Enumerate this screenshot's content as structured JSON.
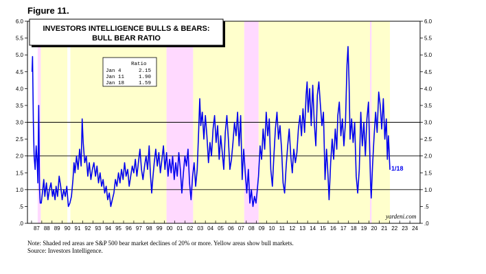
{
  "figure_label": "Figure 11.",
  "title_line1": "INVESTORS INTELLIGENCE BULLS & BEARS:",
  "title_line2": "BULL BEAR RATIO",
  "ratio_table": {
    "header": "Ratio",
    "rows": [
      {
        "date": "Jan  4",
        "value": "2.15"
      },
      {
        "date": "Jan 11",
        "value": "1.90"
      },
      {
        "date": "Jan 18",
        "value": "1.59"
      }
    ]
  },
  "end_label": "1/18",
  "credit": "yardeni.com",
  "note_line1": "Note: Shaded red areas are S&P 500 bear market declines of 20% or more. Yellow areas show bull markets.",
  "note_line2": "Source: Investors Intelligence.",
  "colors": {
    "series": "#0000ee",
    "bull": "#ffffcc",
    "bear": "#ffd9ff",
    "end_label": "#0000ee"
  },
  "chart_data": {
    "type": "line",
    "series": [
      {
        "points": [
          [
            1987.05,
            4.5
          ],
          [
            1987.1,
            4.95
          ],
          [
            1987.18,
            3.0
          ],
          [
            1987.25,
            2.0
          ],
          [
            1987.35,
            1.6
          ],
          [
            1987.45,
            2.3
          ],
          [
            1987.55,
            1.8
          ],
          [
            1987.62,
            1.2
          ],
          [
            1987.7,
            3.5
          ],
          [
            1987.78,
            1.0
          ],
          [
            1987.85,
            0.6
          ],
          [
            1987.95,
            0.6
          ],
          [
            1988.1,
            1.0
          ],
          [
            1988.2,
            1.3
          ],
          [
            1988.3,
            0.8
          ],
          [
            1988.45,
            1.2
          ],
          [
            1988.6,
            0.7
          ],
          [
            1988.75,
            1.0
          ],
          [
            1988.9,
            1.2
          ],
          [
            1989.05,
            0.8
          ],
          [
            1989.15,
            1.0
          ],
          [
            1989.3,
            0.7
          ],
          [
            1989.4,
            1.1
          ],
          [
            1989.55,
            0.8
          ],
          [
            1989.7,
            1.4
          ],
          [
            1989.85,
            1.1
          ],
          [
            1990.0,
            0.7
          ],
          [
            1990.15,
            1.0
          ],
          [
            1990.3,
            0.8
          ],
          [
            1990.45,
            1.1
          ],
          [
            1990.6,
            0.5
          ],
          [
            1990.75,
            0.6
          ],
          [
            1990.9,
            0.8
          ],
          [
            1991.05,
            1.3
          ],
          [
            1991.15,
            1.8
          ],
          [
            1991.25,
            1.5
          ],
          [
            1991.4,
            2.0
          ],
          [
            1991.55,
            1.6
          ],
          [
            1991.7,
            2.2
          ],
          [
            1991.85,
            1.7
          ],
          [
            1991.95,
            3.1
          ],
          [
            1992.05,
            2.4
          ],
          [
            1992.2,
            1.8
          ],
          [
            1992.35,
            2.0
          ],
          [
            1992.5,
            1.4
          ],
          [
            1992.65,
            1.8
          ],
          [
            1992.8,
            1.3
          ],
          [
            1992.95,
            1.6
          ],
          [
            1993.1,
            1.8
          ],
          [
            1993.25,
            1.4
          ],
          [
            1993.4,
            1.7
          ],
          [
            1993.55,
            1.2
          ],
          [
            1993.7,
            1.5
          ],
          [
            1993.85,
            1.1
          ],
          [
            1994.0,
            1.3
          ],
          [
            1994.15,
            0.9
          ],
          [
            1994.3,
            1.1
          ],
          [
            1994.45,
            0.7
          ],
          [
            1994.6,
            0.9
          ],
          [
            1994.75,
            0.5
          ],
          [
            1994.9,
            0.7
          ],
          [
            1995.05,
            0.9
          ],
          [
            1995.2,
            1.3
          ],
          [
            1995.35,
            1.1
          ],
          [
            1995.5,
            1.5
          ],
          [
            1995.65,
            1.2
          ],
          [
            1995.8,
            1.6
          ],
          [
            1995.95,
            1.3
          ],
          [
            1996.1,
            1.8
          ],
          [
            1996.25,
            1.4
          ],
          [
            1996.4,
            1.6
          ],
          [
            1996.55,
            1.1
          ],
          [
            1996.7,
            1.4
          ],
          [
            1996.85,
            1.7
          ],
          [
            1997.0,
            1.5
          ],
          [
            1997.15,
            1.9
          ],
          [
            1997.3,
            1.4
          ],
          [
            1997.45,
            1.8
          ],
          [
            1997.6,
            2.2
          ],
          [
            1997.75,
            1.6
          ],
          [
            1997.9,
            1.3
          ],
          [
            1998.05,
            1.7
          ],
          [
            1998.2,
            2.0
          ],
          [
            1998.35,
            1.6
          ],
          [
            1998.5,
            2.3
          ],
          [
            1998.62,
            1.5
          ],
          [
            1998.75,
            0.9
          ],
          [
            1998.88,
            1.4
          ],
          [
            1999.0,
            1.8
          ],
          [
            1999.15,
            2.2
          ],
          [
            1999.3,
            1.7
          ],
          [
            1999.45,
            2.1
          ],
          [
            1999.6,
            1.5
          ],
          [
            1999.75,
            1.9
          ],
          [
            1999.9,
            2.3
          ],
          [
            2000.05,
            1.6
          ],
          [
            2000.2,
            2.1
          ],
          [
            2000.35,
            1.4
          ],
          [
            2000.5,
            1.9
          ],
          [
            2000.65,
            1.5
          ],
          [
            2000.8,
            2.0
          ],
          [
            2000.95,
            1.3
          ],
          [
            2001.1,
            1.8
          ],
          [
            2001.25,
            1.4
          ],
          [
            2001.4,
            2.1
          ],
          [
            2001.55,
            1.6
          ],
          [
            2001.7,
            0.9
          ],
          [
            2001.85,
            1.5
          ],
          [
            2002.0,
            2.0
          ],
          [
            2002.15,
            1.7
          ],
          [
            2002.3,
            2.2
          ],
          [
            2002.45,
            1.2
          ],
          [
            2002.6,
            0.7
          ],
          [
            2002.75,
            1.4
          ],
          [
            2002.9,
            1.8
          ],
          [
            2003.05,
            1.1
          ],
          [
            2003.2,
            1.6
          ],
          [
            2003.35,
            2.8
          ],
          [
            2003.45,
            3.7
          ],
          [
            2003.55,
            2.9
          ],
          [
            2003.7,
            3.3
          ],
          [
            2003.85,
            2.5
          ],
          [
            2004.0,
            3.2
          ],
          [
            2004.15,
            2.6
          ],
          [
            2004.3,
            1.8
          ],
          [
            2004.45,
            2.4
          ],
          [
            2004.6,
            2.0
          ],
          [
            2004.75,
            2.8
          ],
          [
            2004.9,
            3.2
          ],
          [
            2005.05,
            2.4
          ],
          [
            2005.2,
            2.9
          ],
          [
            2005.35,
            1.9
          ],
          [
            2005.5,
            2.6
          ],
          [
            2005.65,
            2.1
          ],
          [
            2005.8,
            1.6
          ],
          [
            2005.95,
            2.7
          ],
          [
            2006.1,
            3.2
          ],
          [
            2006.25,
            2.5
          ],
          [
            2006.4,
            1.6
          ],
          [
            2006.55,
            1.9
          ],
          [
            2006.7,
            2.4
          ],
          [
            2006.85,
            3.0
          ],
          [
            2007.0,
            2.6
          ],
          [
            2007.15,
            3.3
          ],
          [
            2007.3,
            2.3
          ],
          [
            2007.45,
            3.2
          ],
          [
            2007.6,
            1.3
          ],
          [
            2007.75,
            2.2
          ],
          [
            2007.9,
            1.5
          ],
          [
            2008.05,
            0.9
          ],
          [
            2008.2,
            1.6
          ],
          [
            2008.35,
            0.6
          ],
          [
            2008.5,
            1.0
          ],
          [
            2008.65,
            0.5
          ],
          [
            2008.8,
            0.8
          ],
          [
            2008.95,
            0.6
          ],
          [
            2009.05,
            0.9
          ],
          [
            2009.2,
            1.4
          ],
          [
            2009.35,
            2.3
          ],
          [
            2009.5,
            1.9
          ],
          [
            2009.65,
            2.8
          ],
          [
            2009.8,
            2.2
          ],
          [
            2009.95,
            3.3
          ],
          [
            2010.1,
            2.6
          ],
          [
            2010.25,
            3.1
          ],
          [
            2010.4,
            1.6
          ],
          [
            2010.55,
            1.1
          ],
          [
            2010.7,
            2.0
          ],
          [
            2010.85,
            2.8
          ],
          [
            2011.0,
            3.3
          ],
          [
            2011.15,
            2.5
          ],
          [
            2011.3,
            2.9
          ],
          [
            2011.45,
            2.2
          ],
          [
            2011.6,
            1.2
          ],
          [
            2011.75,
            0.9
          ],
          [
            2011.9,
            1.7
          ],
          [
            2012.05,
            2.3
          ],
          [
            2012.2,
            2.8
          ],
          [
            2012.35,
            2.0
          ],
          [
            2012.5,
            1.5
          ],
          [
            2012.65,
            2.2
          ],
          [
            2012.8,
            1.8
          ],
          [
            2012.95,
            2.1
          ],
          [
            2013.1,
            2.8
          ],
          [
            2013.25,
            3.2
          ],
          [
            2013.4,
            2.6
          ],
          [
            2013.55,
            3.4
          ],
          [
            2013.7,
            2.7
          ],
          [
            2013.85,
            3.8
          ],
          [
            2013.95,
            4.2
          ],
          [
            2014.05,
            3.3
          ],
          [
            2014.2,
            4.0
          ],
          [
            2014.35,
            2.9
          ],
          [
            2014.5,
            4.1
          ],
          [
            2014.65,
            3.0
          ],
          [
            2014.8,
            2.3
          ],
          [
            2014.95,
            3.8
          ],
          [
            2015.1,
            4.2
          ],
          [
            2015.25,
            3.5
          ],
          [
            2015.4,
            2.9
          ],
          [
            2015.55,
            3.3
          ],
          [
            2015.7,
            1.3
          ],
          [
            2015.85,
            2.2
          ],
          [
            2016.0,
            1.4
          ],
          [
            2016.1,
            0.7
          ],
          [
            2016.25,
            1.8
          ],
          [
            2016.4,
            2.5
          ],
          [
            2016.55,
            1.9
          ],
          [
            2016.7,
            2.8
          ],
          [
            2016.85,
            2.2
          ],
          [
            2016.95,
            3.2
          ],
          [
            2017.1,
            3.6
          ],
          [
            2017.25,
            2.6
          ],
          [
            2017.4,
            3.1
          ],
          [
            2017.55,
            2.3
          ],
          [
            2017.7,
            3.0
          ],
          [
            2017.85,
            4.7
          ],
          [
            2017.95,
            5.25
          ],
          [
            2018.05,
            4.2
          ],
          [
            2018.15,
            2.5
          ],
          [
            2018.3,
            3.1
          ],
          [
            2018.45,
            2.4
          ],
          [
            2018.6,
            3.0
          ],
          [
            2018.75,
            1.4
          ],
          [
            2018.9,
            0.9
          ],
          [
            2019.05,
            1.6
          ],
          [
            2019.2,
            3.3
          ],
          [
            2019.35,
            2.3
          ],
          [
            2019.5,
            3.0
          ],
          [
            2019.65,
            2.0
          ],
          [
            2019.8,
            3.1
          ],
          [
            2019.95,
            3.6
          ],
          [
            2020.05,
            2.4
          ],
          [
            2020.15,
            1.2
          ],
          [
            2020.22,
            0.75
          ],
          [
            2020.35,
            1.7
          ],
          [
            2020.5,
            2.6
          ],
          [
            2020.65,
            3.3
          ],
          [
            2020.8,
            2.7
          ],
          [
            2020.95,
            3.9
          ],
          [
            2021.1,
            3.5
          ],
          [
            2021.25,
            2.8
          ],
          [
            2021.4,
            3.7
          ],
          [
            2021.55,
            2.5
          ],
          [
            2021.7,
            3.1
          ],
          [
            2021.8,
            1.9
          ],
          [
            2021.9,
            2.6
          ],
          [
            2021.97,
            2.15
          ],
          [
            2022.0,
            1.9
          ],
          [
            2022.05,
            1.59
          ]
        ]
      }
    ],
    "bull_periods": [
      [
        1987.9,
        1990.5
      ],
      [
        1990.8,
        2000.2
      ],
      [
        2002.8,
        2007.8
      ],
      [
        2009.2,
        2020.1
      ],
      [
        2020.25,
        2022.05
      ]
    ],
    "bear_periods": [
      [
        1987.6,
        1987.9
      ],
      [
        2000.2,
        2002.8
      ],
      [
        2007.8,
        2009.2
      ],
      [
        2020.1,
        2020.25
      ]
    ],
    "xlim": [
      1986.6,
      2025.0
    ],
    "ylim": [
      0,
      6
    ],
    "y_ticks": [
      {
        "value": 0,
        "label": ".0"
      },
      {
        "value": 0.5,
        "label": ".5"
      },
      {
        "value": 1,
        "label": "1.0"
      },
      {
        "value": 1.5,
        "label": "1.5"
      },
      {
        "value": 2,
        "label": "2.0"
      },
      {
        "value": 2.5,
        "label": "2.5"
      },
      {
        "value": 3,
        "label": "3.0"
      },
      {
        "value": 3.5,
        "label": "3.5"
      },
      {
        "value": 4,
        "label": "4.0"
      },
      {
        "value": 4.5,
        "label": "4.5"
      },
      {
        "value": 5,
        "label": "5.0"
      },
      {
        "value": 5.5,
        "label": "5.5"
      },
      {
        "value": 6,
        "label": "6.0"
      }
    ],
    "x_tick_labels": [
      "87",
      "88",
      "89",
      "90",
      "91",
      "92",
      "93",
      "94",
      "95",
      "96",
      "97",
      "98",
      "99",
      "00",
      "01",
      "02",
      "03",
      "04",
      "05",
      "06",
      "07",
      "08",
      "09",
      "10",
      "11",
      "12",
      "13",
      "14",
      "15",
      "16",
      "17",
      "18",
      "19",
      "20",
      "21",
      "22",
      "23",
      "24"
    ],
    "x_tick_start_year": 1987,
    "gridlines": [
      1,
      2,
      3
    ]
  }
}
